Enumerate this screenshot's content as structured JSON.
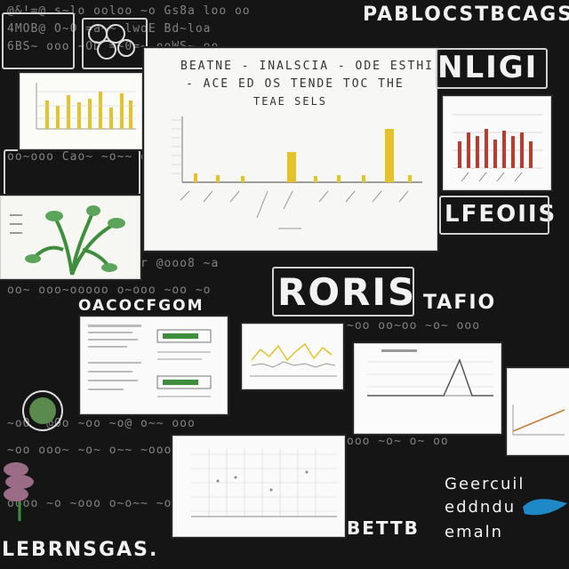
{
  "headers": {
    "top_right": "PABLOCSTBCAGS",
    "main_chart_title_line1": "BEATNE - INALSCIA - ODE ESTHI",
    "main_chart_title_line2": "- ACE ED OS TENDE TOC THE",
    "main_chart_title_line3": "TEAE SELS",
    "nligi": "NLIGI",
    "lfeoiis": "LFEOIIS",
    "roris": "RORIS",
    "tafio": "TAFIO",
    "oatsacfgn": "OACOCFGOM",
    "bottom_left": "LEBRNSGAS.",
    "bettb": "BETTB",
    "bottom_right_1": "Geercuil",
    "bottom_right_2": "eddndu",
    "bottom_right_3": "emaln"
  },
  "colors": {
    "background": "#151515",
    "chalk": "#e6e6e6",
    "accent_yellow": "#e6c229",
    "accent_red": "#c0392b",
    "accent_green": "#3e8e3e"
  },
  "icons": [
    "plant-illustration-icon",
    "cell-illustration-icon",
    "leaf-scribble-icon",
    "blue-wave-icon"
  ]
}
